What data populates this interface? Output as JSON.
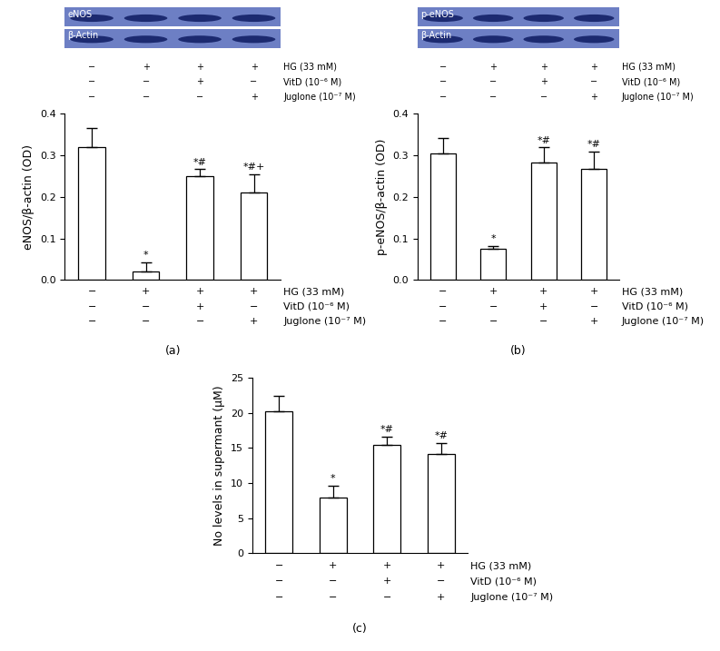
{
  "chart_data": [
    {
      "type": "bar",
      "panel_label": "(a)",
      "ylabel": "eNOS/β-actin (OD)",
      "color": "#ffffff",
      "values": [
        0.32,
        0.02,
        0.25,
        0.21
      ],
      "errors": [
        0.045,
        0.022,
        0.017,
        0.045
      ],
      "significance": [
        null,
        "*",
        "*#",
        "*#+"
      ],
      "ylim": [
        0,
        0.4
      ],
      "yticks": [
        0.0,
        0.1,
        0.2,
        0.3,
        0.4
      ],
      "tick_labels": "y",
      "blot": [
        "eNOS",
        "β-Actin"
      ],
      "condition_table": [
        {
          "label": "HG (33 mM)",
          "marks": [
            "−",
            "+",
            "+",
            "+"
          ]
        },
        {
          "label": "VitD (10⁻⁶ M)",
          "marks": [
            "−",
            "−",
            "+",
            "−"
          ]
        },
        {
          "label": "Juglone (10⁻⁷ M)",
          "marks": [
            "−",
            "−",
            "−",
            "+"
          ]
        }
      ]
    },
    {
      "type": "bar",
      "panel_label": "(b)",
      "ylabel": "p-eNOS/β-actin (OD)",
      "color": "#ffffff",
      "values": [
        0.305,
        0.075,
        0.282,
        0.267
      ],
      "errors": [
        0.037,
        0.007,
        0.037,
        0.042
      ],
      "significance": [
        null,
        "*",
        "*#",
        "*#"
      ],
      "ylim": [
        0,
        0.4
      ],
      "yticks": [
        0.0,
        0.1,
        0.2,
        0.3,
        0.4
      ],
      "tick_labels": "y",
      "blot": [
        "p-eNOS",
        "β-Actin"
      ],
      "condition_table": [
        {
          "label": "HG (33 mM)",
          "marks": [
            "−",
            "+",
            "+",
            "+"
          ]
        },
        {
          "label": "VitD (10⁻⁶ M)",
          "marks": [
            "−",
            "−",
            "+",
            "−"
          ]
        },
        {
          "label": "Juglone (10⁻⁷ M)",
          "marks": [
            "−",
            "−",
            "−",
            "+"
          ]
        }
      ]
    },
    {
      "type": "bar",
      "panel_label": "(c)",
      "ylabel": "No levels in supermant (μM)",
      "color": "#ffffff",
      "values": [
        20.2,
        7.9,
        15.4,
        14.1
      ],
      "errors": [
        2.2,
        1.7,
        1.2,
        1.6
      ],
      "significance": [
        null,
        "*",
        "*#",
        "*#"
      ],
      "ylim": [
        0,
        25
      ],
      "yticks": [
        0,
        5,
        10,
        15,
        20,
        25
      ],
      "tick_labels": "y",
      "condition_table": [
        {
          "label": "HG (33 mM)",
          "marks": [
            "−",
            "+",
            "+",
            "+"
          ]
        },
        {
          "label": "VitD (10⁻⁶ M)",
          "marks": [
            "−",
            "−",
            "+",
            "−"
          ]
        },
        {
          "label": "Juglone (10⁻⁷ M)",
          "marks": [
            "−",
            "−",
            "−",
            "+"
          ]
        }
      ]
    }
  ]
}
